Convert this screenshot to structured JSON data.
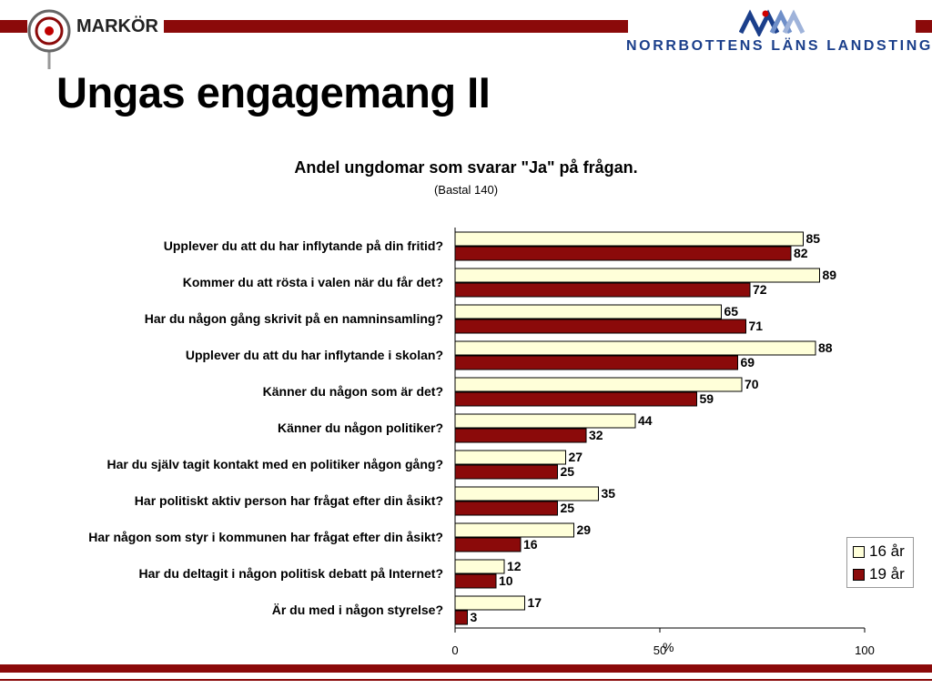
{
  "header": {
    "brand_left": "MARKÖR",
    "brand_right": "NORRBOTTENS LÄNS LANDSTING",
    "colors": {
      "band": "#8b0a0a",
      "brand_blue": "#1b3f8b"
    }
  },
  "slide": {
    "title": "Ungas engagemang II"
  },
  "chart_data": {
    "type": "bar",
    "orientation": "horizontal",
    "title": "Andel ungdomar som svarar \"Ja\" på frågan.",
    "subtitle": "(Bastal 140)",
    "xlabel": "%",
    "xlim": [
      0,
      100
    ],
    "x_ticks": [
      "0",
      "50",
      "100"
    ],
    "categories": [
      "Upplever du att du har inflytande på din fritid?",
      "Kommer du att rösta i valen när du får det?",
      "Har du någon gång skrivit på en namninsamling?",
      "Upplever du att du har inflytande i skolan?",
      "Känner du någon som är det?",
      "Känner du någon politiker?",
      "Har du själv tagit kontakt med en politiker någon gång?",
      "Har politiskt aktiv person har frågat efter din åsikt?",
      "Har någon som styr i kommunen har frågat efter din åsikt?",
      "Har du deltagit i någon politisk debatt på Internet?",
      "Är du med i någon styrelse?"
    ],
    "series": [
      {
        "name": "16 år",
        "color": "#ffffd9",
        "values": [
          85,
          89,
          65,
          88,
          70,
          44,
          27,
          35,
          29,
          12,
          17
        ]
      },
      {
        "name": "19 år",
        "color": "#8b0a0a",
        "values": [
          82,
          72,
          71,
          69,
          59,
          32,
          25,
          25,
          16,
          10,
          3
        ]
      }
    ],
    "legend_position": "right",
    "grid": false
  }
}
